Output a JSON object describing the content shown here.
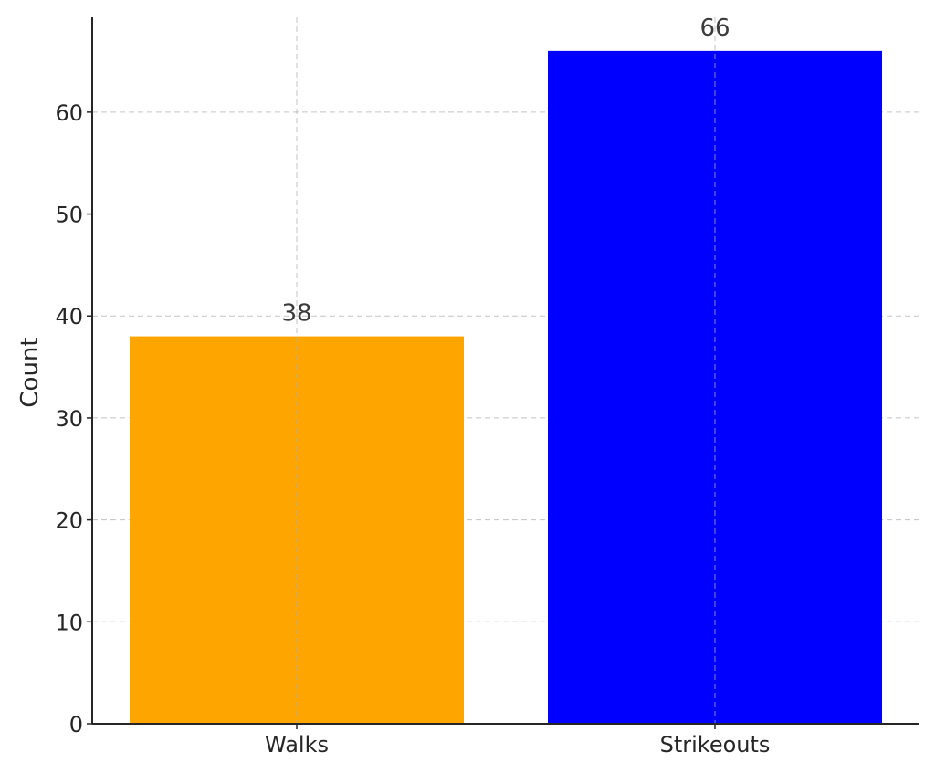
{
  "chart_data": {
    "type": "bar",
    "categories": [
      "Walks",
      "Strikeouts"
    ],
    "values": [
      38,
      66
    ],
    "colors": [
      "#FFA500",
      "#0000FF"
    ],
    "data_labels": [
      "38",
      "66"
    ],
    "title": "",
    "xlabel": "",
    "ylabel": "Count",
    "ylim": [
      0,
      69.3
    ],
    "yticks": [
      0,
      10,
      20,
      30,
      40,
      50,
      60
    ],
    "ytick_labels": [
      "0",
      "10",
      "20",
      "30",
      "40",
      "50",
      "60"
    ],
    "grid": true,
    "legend": false
  }
}
